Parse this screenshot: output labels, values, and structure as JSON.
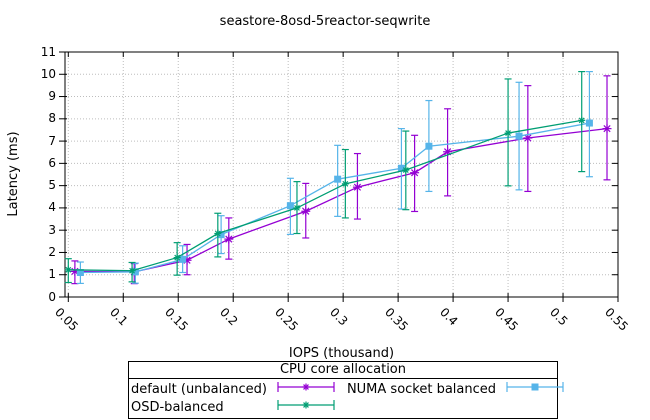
{
  "window": {
    "title": "seastore-8osd-5reactor-seqwrite"
  },
  "axes": {
    "x_label": "IOPS (thousand)",
    "y_label": "Latency (ms)"
  },
  "legend": {
    "title": "CPU core allocation"
  },
  "colors": {
    "default_unbalanced": "#9400d3",
    "osd_balanced": "#009e73",
    "numa_socket_balanced": "#56b4e9",
    "grid": "#bdbdbd",
    "border": "#000000"
  },
  "chart_data": {
    "type": "line",
    "title": "seastore-8osd-5reactor-seqwrite",
    "xlabel": "IOPS (thousand)",
    "ylabel": "Latency (ms)",
    "xlim": [
      0.047,
      0.55
    ],
    "ylim": [
      0,
      11
    ],
    "grid": true,
    "legend_title": "CPU core allocation",
    "legend_position": "below",
    "x_ticks": [
      0.05,
      0.1,
      0.15,
      0.2,
      0.25,
      0.3,
      0.35,
      0.4,
      0.45,
      0.5,
      0.55
    ],
    "x_tick_labels": [
      "0.05",
      "0.1",
      "0.15",
      "0.2",
      "0.25",
      "0.3",
      "0.35",
      "0.4",
      "0.45",
      "0.5",
      "0.55"
    ],
    "y_ticks": [
      0,
      1,
      2,
      3,
      4,
      5,
      6,
      7,
      8,
      9,
      10,
      11
    ],
    "y_tick_labels": [
      "0",
      "1",
      "2",
      "3",
      "4",
      "5",
      "6",
      "7",
      "8",
      "9",
      "10",
      "11"
    ],
    "series": [
      {
        "name": "default (unbalanced)",
        "color": "#9400d3",
        "marker": "asterisk",
        "style": "errorbar-line",
        "x": [
          0.056,
          0.11,
          0.158,
          0.196,
          0.266,
          0.313,
          0.365,
          0.395,
          0.468,
          0.54
        ],
        "y": [
          1.15,
          1.13,
          1.65,
          2.6,
          3.85,
          4.93,
          5.58,
          6.52,
          7.14,
          7.56
        ],
        "y_low": [
          0.6,
          0.6,
          1.0,
          1.7,
          2.65,
          3.5,
          3.84,
          4.54,
          4.74,
          5.26
        ],
        "y_high": [
          1.62,
          1.5,
          2.36,
          3.55,
          5.1,
          6.44,
          7.26,
          8.45,
          9.49,
          9.93
        ]
      },
      {
        "name": "OSD-balanced",
        "color": "#009e73",
        "marker": "asterisk",
        "style": "errorbar-line",
        "x": [
          0.05,
          0.108,
          0.149,
          0.186,
          0.258,
          0.302,
          0.357,
          0.45,
          0.517
        ],
        "y": [
          1.22,
          1.18,
          1.77,
          2.85,
          4.0,
          5.08,
          5.7,
          7.36,
          7.93
        ],
        "y_low": [
          0.65,
          0.68,
          0.98,
          1.8,
          2.85,
          3.55,
          3.92,
          4.99,
          5.63
        ],
        "y_high": [
          1.72,
          1.55,
          2.44,
          3.76,
          5.18,
          6.62,
          7.45,
          9.79,
          10.12
        ]
      },
      {
        "name": "NUMA socket balanced",
        "color": "#56b4e9",
        "marker": "square",
        "style": "errorbar-line",
        "x": [
          0.061,
          0.111,
          0.154,
          0.189,
          0.252,
          0.295,
          0.353,
          0.378,
          0.46,
          0.524
        ],
        "y": [
          1.1,
          1.13,
          1.69,
          2.8,
          4.1,
          5.29,
          5.78,
          6.77,
          7.22,
          7.81
        ],
        "y_low": [
          0.61,
          0.62,
          1.1,
          1.95,
          2.81,
          3.62,
          3.95,
          4.74,
          4.81,
          5.4
        ],
        "y_high": [
          1.57,
          1.52,
          2.3,
          3.65,
          5.33,
          6.81,
          7.56,
          8.82,
          9.64,
          10.12
        ]
      }
    ]
  }
}
